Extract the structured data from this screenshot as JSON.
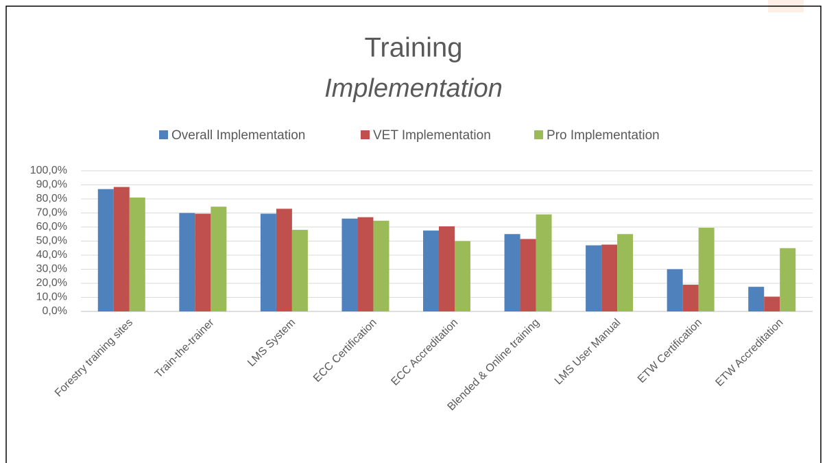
{
  "chart_data": {
    "type": "bar",
    "title": "Training",
    "subtitle": "Implementation",
    "categories": [
      "Forestry training sites",
      "Train-the-trainer",
      "LMS System",
      "ECC Certification",
      "ECC Accreditation",
      "Blended & Online training",
      "LMS User Manual",
      "ETW Certification",
      "ETW Accreditation"
    ],
    "series": [
      {
        "name": "Overall Implementation",
        "color": "#4f81bd",
        "values": [
          87,
          70,
          69.5,
          66,
          57.5,
          55,
          47,
          30,
          17.5
        ]
      },
      {
        "name": "VET Implementation",
        "color": "#c0504d",
        "values": [
          88.5,
          69.5,
          73,
          67,
          60.5,
          51.5,
          47.5,
          19,
          10.5
        ]
      },
      {
        "name": "Pro Implementation",
        "color": "#9bbb59",
        "values": [
          81,
          74.5,
          58,
          64.5,
          50,
          69,
          55,
          59.5,
          45
        ]
      }
    ],
    "ylim": [
      0,
      100
    ],
    "yticks": [
      {
        "value": 0,
        "label": "0,0%"
      },
      {
        "value": 10,
        "label": "10,0%"
      },
      {
        "value": 20,
        "label": "20,0%"
      },
      {
        "value": 30,
        "label": "30,0%"
      },
      {
        "value": 40,
        "label": "40,0%"
      },
      {
        "value": 50,
        "label": "50,0%"
      },
      {
        "value": 60,
        "label": "60,0%"
      },
      {
        "value": 70,
        "label": "70,0%"
      },
      {
        "value": 80,
        "label": "80,0%"
      },
      {
        "value": 90,
        "label": "90,0%"
      },
      {
        "value": 100,
        "label": "100,0%"
      }
    ],
    "grid": true,
    "legend": "top"
  }
}
